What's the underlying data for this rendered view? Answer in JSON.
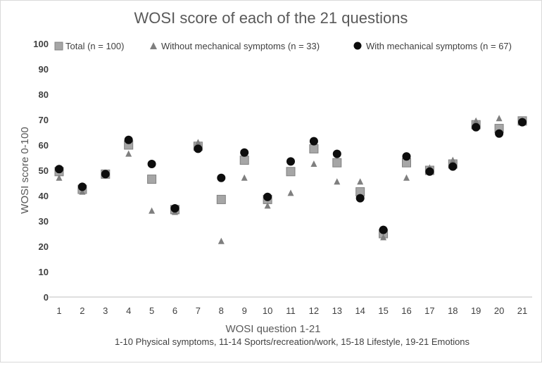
{
  "chart_data": {
    "type": "scatter",
    "title": "WOSI score of each of the 21 questions",
    "xlabel": "WOSI question 1-21",
    "subtitle": "1-10 Physical symptoms, 11-14 Sports/recreation/work, 15-18 Lifestyle, 19-21  Emotions",
    "ylabel": "WOSI score 0-100",
    "x": [
      1,
      2,
      3,
      4,
      5,
      6,
      7,
      8,
      9,
      10,
      11,
      12,
      13,
      14,
      15,
      16,
      17,
      18,
      19,
      20,
      21
    ],
    "x_tick_labels": [
      "1",
      "2",
      "3",
      "4",
      "5",
      "6",
      "7",
      "8",
      "9",
      "10",
      "11",
      "12",
      "13",
      "14",
      "15",
      "16",
      "17",
      "18",
      "19",
      "20",
      "21"
    ],
    "xlim": [
      1,
      21
    ],
    "ylim": [
      0,
      100
    ],
    "y_tick_labels": [
      "0",
      "10",
      "20",
      "30",
      "40",
      "50",
      "60",
      "70",
      "80",
      "90",
      "100"
    ],
    "grid": false,
    "legend_position": "top",
    "series": [
      {
        "name": "Total (n = 100)",
        "marker": "square",
        "color": "#a6a6a6",
        "values": [
          49.5,
          42.5,
          48.5,
          60,
          46.5,
          34.5,
          59.5,
          38.5,
          54,
          38.5,
          49.5,
          58.5,
          53,
          41.5,
          25,
          53,
          50,
          52.5,
          68,
          66.5,
          69.5
        ]
      },
      {
        "name": "Without mechanical symptoms (n = 33)",
        "marker": "triangle",
        "color": "#7f7f7f",
        "values": [
          47,
          41.5,
          48.5,
          56.5,
          34,
          33.5,
          61,
          22,
          47,
          36,
          41,
          52.5,
          45.5,
          45.5,
          23.5,
          47,
          51,
          54,
          69.5,
          70.5,
          69.5
        ]
      },
      {
        "name": "With mechanical symptoms (n = 67)",
        "marker": "circle",
        "color": "#0d0d0d",
        "values": [
          50.5,
          43.5,
          48.5,
          62,
          52.5,
          35,
          58.5,
          47,
          57,
          39.5,
          53.5,
          61.5,
          56.5,
          39,
          26.5,
          55.5,
          49.5,
          51.5,
          67,
          64.5,
          69
        ]
      }
    ]
  }
}
